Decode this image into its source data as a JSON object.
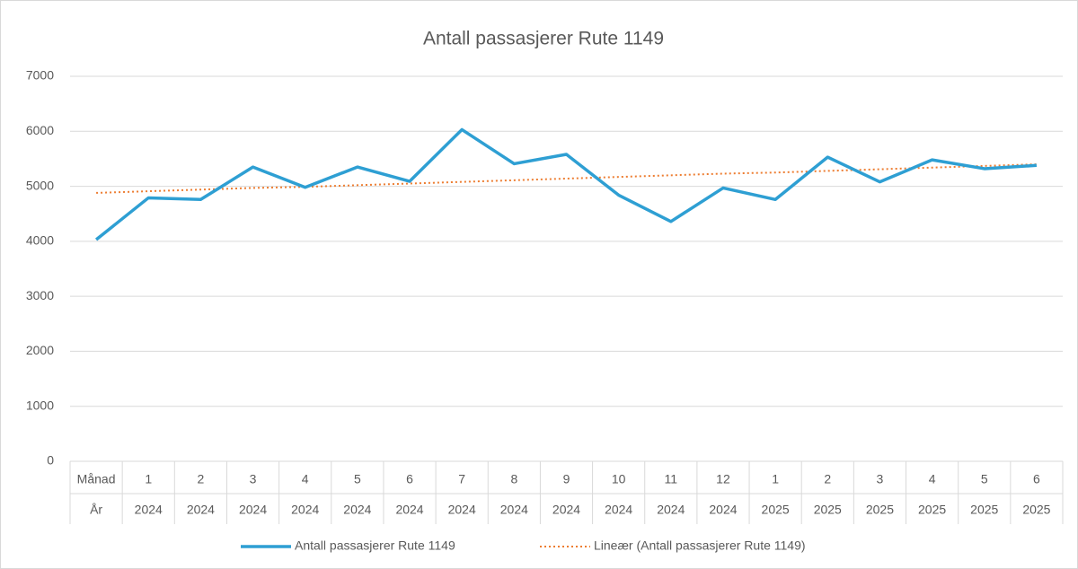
{
  "chart_data": {
    "type": "line",
    "title": "Antall passasjerer Rute 1149",
    "categories": [
      "Månad",
      "1",
      "2",
      "3",
      "4",
      "5",
      "6",
      "7",
      "8",
      "9",
      "10",
      "11",
      "12",
      "1",
      "2",
      "3",
      "4",
      "5",
      "6"
    ],
    "category_groups": [
      "År",
      "2024",
      "2024",
      "2024",
      "2024",
      "2024",
      "2024",
      "2024",
      "2024",
      "2024",
      "2024",
      "2024",
      "2024",
      "2025",
      "2025",
      "2025",
      "2025",
      "2025",
      "2025"
    ],
    "series": [
      {
        "name": "Antall passasjerer Rute 1149",
        "color": "#2e9fd3",
        "style": "solid",
        "values": [
          4030,
          4790,
          4760,
          5350,
          4980,
          5350,
          5090,
          6030,
          5410,
          5580,
          4840,
          4360,
          4970,
          4760,
          5530,
          5080,
          5480,
          5320,
          5380
        ]
      },
      {
        "name": "Lineær (Antall passasjerer Rute 1149)",
        "color": "#ed7d31",
        "style": "dotted",
        "values": [
          4880,
          4910,
          4940,
          4970,
          4990,
          5020,
          5050,
          5080,
          5110,
          5140,
          5170,
          5200,
          5230,
          5250,
          5280,
          5310,
          5340,
          5370,
          5400
        ]
      }
    ],
    "ylim": [
      0,
      7000
    ],
    "yticks": [
      0,
      1000,
      2000,
      3000,
      4000,
      5000,
      6000,
      7000
    ],
    "grid": true,
    "legend": "bottom"
  }
}
